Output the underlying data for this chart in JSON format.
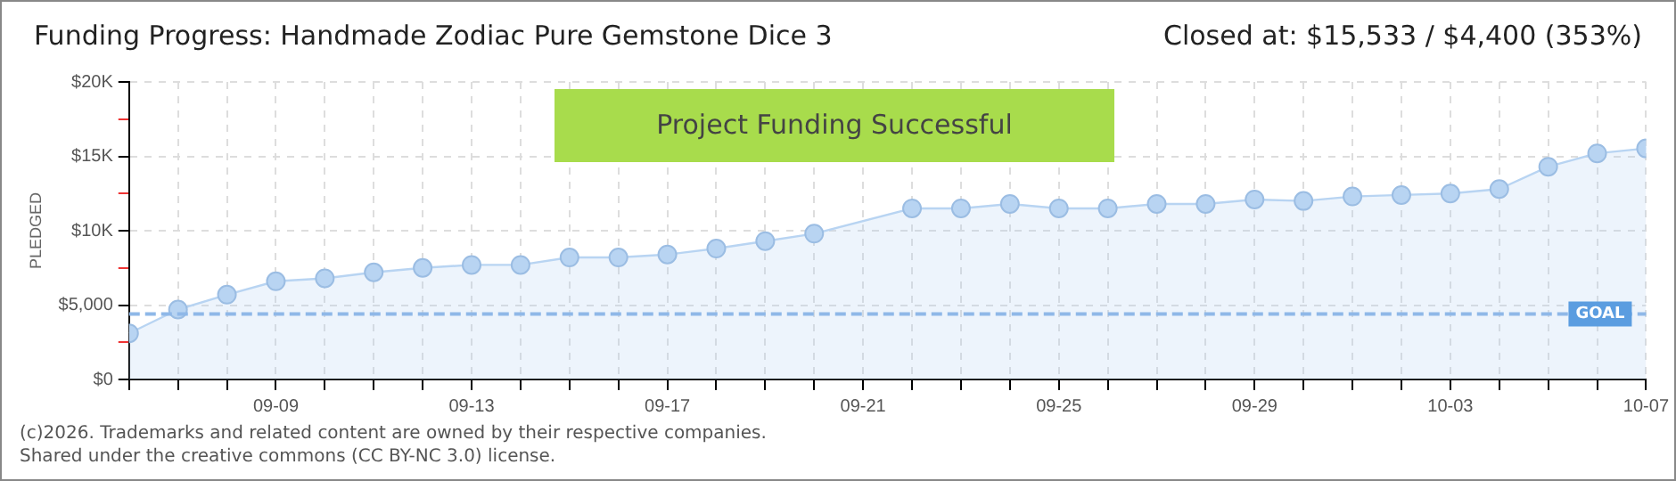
{
  "chart_data": {
    "type": "area",
    "title": "Funding Progress: Handmade Zodiac Pure Gemstone Dice 3",
    "subtitle": "Closed at:  $15,533 /  $4,400 (353%)",
    "ylabel": "PLEDGED",
    "x": [
      "--09-06",
      "--09-07",
      "--09-08",
      "--09-09",
      "--09-10",
      "--09-11",
      "--09-12",
      "--09-13",
      "--09-14",
      "--09-15",
      "--09-16",
      "--09-17",
      "--09-18",
      "--09-19",
      "--09-20",
      "--09-21",
      "--09-22",
      "--09-23",
      "--09-24",
      "--09-25",
      "--09-26",
      "--09-27",
      "--09-28",
      "--09-29",
      "--09-30",
      "--10-01",
      "--10-02",
      "--10-03",
      "--10-04",
      "--10-05",
      "--10-06",
      "--10-07"
    ],
    "series": [
      {
        "color": "#b8d4f2",
        "values": [
          3100,
          4700,
          5700,
          6600,
          6800,
          7200,
          7500,
          7700,
          7700,
          8200,
          8200,
          8400,
          8800,
          9300,
          9800,
          null,
          11500,
          11500,
          11800,
          11500,
          11500,
          11800,
          11800,
          12100,
          12000,
          12300,
          12400,
          12500,
          12800,
          14300,
          15200,
          15533
        ]
      }
    ],
    "xlim": [
      "--09-06",
      "--10-07"
    ],
    "xticks": [
      {
        "value": "--09-06",
        "label": null
      },
      {
        "value": "--09-07",
        "label": null
      },
      {
        "value": "--09-08",
        "label": null
      },
      {
        "value": "--09-09",
        "label": "09-09"
      },
      {
        "value": "--09-10",
        "label": null
      },
      {
        "value": "--09-11",
        "label": null
      },
      {
        "value": "--09-12",
        "label": null
      },
      {
        "value": "--09-13",
        "label": "09-13"
      },
      {
        "value": "--09-14",
        "label": null
      },
      {
        "value": "--09-15",
        "label": null
      },
      {
        "value": "--09-16",
        "label": null
      },
      {
        "value": "--09-17",
        "label": "09-17"
      },
      {
        "value": "--09-18",
        "label": null
      },
      {
        "value": "--09-19",
        "label": null
      },
      {
        "value": "--09-20",
        "label": null
      },
      {
        "value": "--09-21",
        "label": "09-21"
      },
      {
        "value": "--09-22",
        "label": null
      },
      {
        "value": "--09-23",
        "label": null
      },
      {
        "value": "--09-24",
        "label": null
      },
      {
        "value": "--09-25",
        "label": "09-25"
      },
      {
        "value": "--09-26",
        "label": null
      },
      {
        "value": "--09-27",
        "label": null
      },
      {
        "value": "--09-28",
        "label": null
      },
      {
        "value": "--09-29",
        "label": "09-29"
      },
      {
        "value": "--09-30",
        "label": null
      },
      {
        "value": "--10-01",
        "label": null
      },
      {
        "value": "--10-02",
        "label": null
      },
      {
        "value": "--10-03",
        "label": "10-03"
      },
      {
        "value": "--10-04",
        "label": null
      },
      {
        "value": "--10-05",
        "label": null
      },
      {
        "value": "--10-06",
        "label": null
      },
      {
        "value": "--10-07",
        "label": "10-07"
      }
    ],
    "ylim": [
      0,
      20000
    ],
    "yticks": [
      {
        "value": 0,
        "label": "$0"
      },
      {
        "value": 2500,
        "label": null
      },
      {
        "value": 5000,
        "label": "$5,000"
      },
      {
        "value": 7500,
        "label": null
      },
      {
        "value": 10000,
        "label": "$10K"
      },
      {
        "value": 12500,
        "label": null
      },
      {
        "value": 15000,
        "label": "$15K"
      },
      {
        "value": 17500,
        "label": null
      },
      {
        "value": 20000,
        "label": "$20K"
      }
    ],
    "ref_lines": [
      {
        "axis": "y",
        "value": 4400,
        "label": "GOAL",
        "color": "#8fb8e8",
        "line_style": "dashed"
      }
    ],
    "annotations": [
      "Project Funding Successful",
      "(c)2026. Trademarks and related content are owned by their respective companies.",
      "Shared under the creative commons (CC BY-NC 3.0) license."
    ],
    "grid": true,
    "marker": "circle",
    "legend": false
  }
}
